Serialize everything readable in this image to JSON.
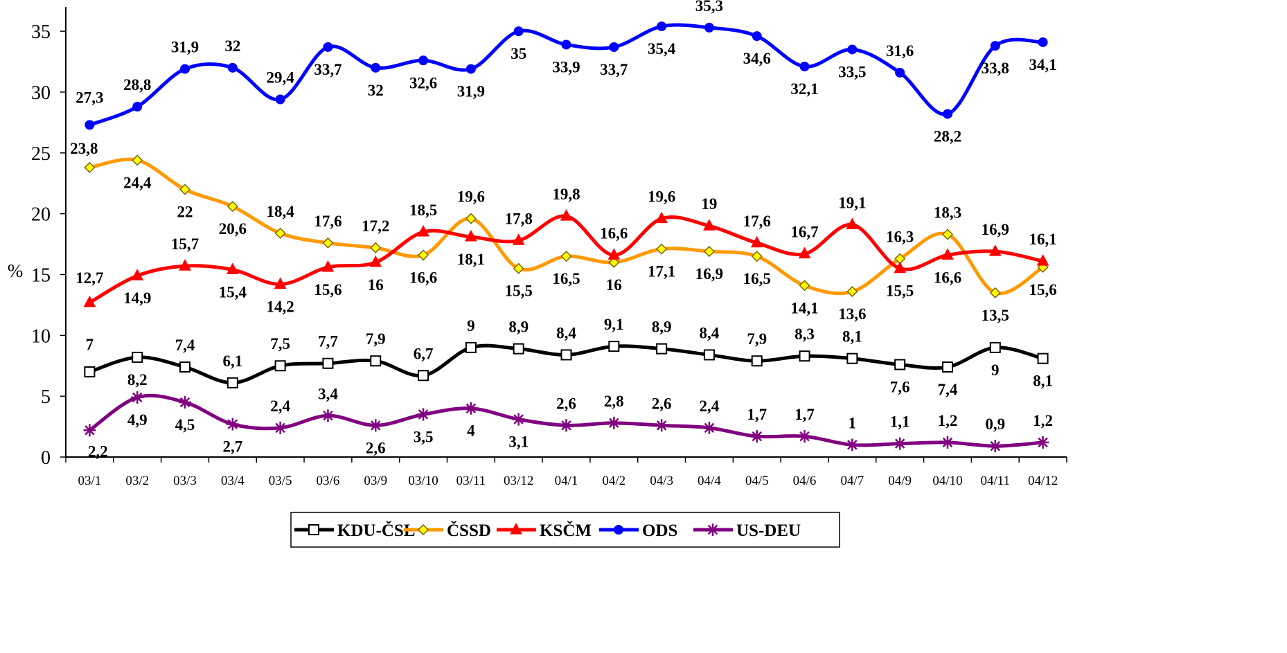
{
  "chart_data": {
    "type": "line",
    "ylabel": "%",
    "xlabel": "",
    "ylim": [
      0,
      37
    ],
    "yticks": [
      "0",
      "5",
      "10",
      "15",
      "20",
      "25",
      "30",
      "35"
    ],
    "categories": [
      "03/1",
      "03/2",
      "03/3",
      "03/4",
      "03/5",
      "03/6",
      "03/9",
      "03/10",
      "03/11",
      "03/12",
      "04/1",
      "04/2",
      "04/3",
      "04/4",
      "04/5",
      "04/6",
      "04/7",
      "04/9",
      "04/10",
      "04/11",
      "04/12"
    ],
    "grid": false,
    "legend_position": "bottom",
    "series": [
      {
        "name": "KDU-ČSL",
        "color": "#000000",
        "marker": "square",
        "values": [
          7,
          8.2,
          7.4,
          6.1,
          7.5,
          7.7,
          7.9,
          6.7,
          9,
          8.9,
          8.4,
          9.1,
          8.9,
          8.4,
          7.9,
          8.3,
          8.1,
          7.6,
          7.4,
          9,
          8.1
        ],
        "labels": [
          "7",
          "8,2",
          "7,4",
          "6,1",
          "7,5",
          "7,7",
          "7,9",
          "6,7",
          "9",
          "8,9",
          "8,4",
          "9,1",
          "8,9",
          "8,4",
          "7,9",
          "8,3",
          "8,1",
          "7,6",
          "7,4",
          "9",
          "8,1"
        ]
      },
      {
        "name": "ČSSD",
        "color": "#FF9900",
        "marker": "diamond",
        "values": [
          23.8,
          24.4,
          22,
          20.6,
          18.4,
          17.6,
          17.2,
          16.6,
          19.6,
          15.5,
          16.5,
          16,
          17.1,
          16.9,
          16.5,
          14.1,
          13.6,
          16.3,
          18.3,
          13.5,
          15.6
        ],
        "labels": [
          "23,8",
          "24,4",
          "22",
          "20,6",
          "18,4",
          "17,6",
          "17,2",
          "16,6",
          "19,6",
          "15,5",
          "16,5",
          "16",
          "17,1",
          "16,9",
          "16,5",
          "14,1",
          "13,6",
          "16,3",
          "18,3",
          "13,5",
          "15,6"
        ]
      },
      {
        "name": "KSČM",
        "color": "#FF0000",
        "marker": "triangle",
        "values": [
          12.7,
          14.9,
          15.7,
          15.4,
          14.2,
          15.6,
          16,
          18.5,
          18.1,
          17.8,
          19.8,
          16.6,
          19.6,
          19,
          17.6,
          16.7,
          19.1,
          15.5,
          16.6,
          16.9,
          16.1
        ],
        "labels": [
          "12,7",
          "14,9",
          "15,7",
          "15,4",
          "14,2",
          "15,6",
          "16",
          "18,5",
          "18,1",
          "17,8",
          "19,8",
          "16,6",
          "19,6",
          "19",
          "17,6",
          "16,7",
          "19,1",
          "15,5",
          "16,6",
          "16,9",
          "16,1"
        ]
      },
      {
        "name": "ODS",
        "color": "#0000FF",
        "marker": "circle",
        "values": [
          27.3,
          28.8,
          31.9,
          32,
          29.4,
          33.7,
          32,
          32.6,
          31.9,
          35,
          33.9,
          33.7,
          35.4,
          35.3,
          34.6,
          32.1,
          33.5,
          31.6,
          28.2,
          33.8,
          34.1
        ],
        "labels": [
          "27,3",
          "28,8",
          "31,9",
          "32",
          "29,4",
          "33,7",
          "32",
          "32,6",
          "31,9",
          "35",
          "33,9",
          "33,7",
          "35,4",
          "35,3",
          "34,6",
          "32,1",
          "33,5",
          "31,6",
          "28,2",
          "33,8",
          "34,1"
        ]
      },
      {
        "name": "US-DEU",
        "color": "#800080",
        "marker": "star",
        "values": [
          2.2,
          4.9,
          4.5,
          2.7,
          2.4,
          3.4,
          2.6,
          3.5,
          4,
          3.1,
          2.6,
          2.8,
          2.6,
          2.4,
          1.7,
          1.7,
          1,
          1.1,
          1.2,
          0.9,
          1.2
        ],
        "labels": [
          "2,2",
          "4,9",
          "4,5",
          "2,7",
          "2,4",
          "3,4",
          "2,6",
          "3,5",
          "4",
          "3,1",
          "2,6",
          "2,8",
          "2,6",
          "2,4",
          "1,7",
          "1,7",
          "1",
          "1,1",
          "1,2",
          "0,9",
          "1,2"
        ]
      }
    ]
  }
}
